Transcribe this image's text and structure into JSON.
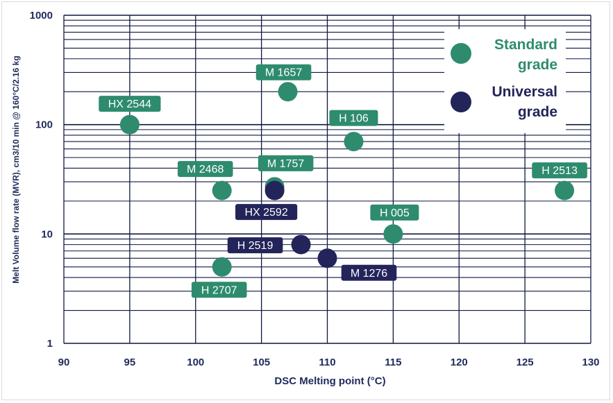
{
  "chart_data": {
    "type": "scatter",
    "xlabel": "DSC Melting point (°C)",
    "ylabel": "Melt Volume flow rate  (MVR), cm3/10 min @ 160°C/2.16 kg",
    "xlim": [
      90,
      130
    ],
    "ylim": [
      1,
      1000
    ],
    "yscale": "log",
    "x_ticks": [
      "90",
      "95",
      "100",
      "105",
      "110",
      "115",
      "120",
      "125",
      "130"
    ],
    "y_ticks": [
      "1",
      "10",
      "100",
      "1000"
    ],
    "grid": true,
    "legend_position": "top-right",
    "series": [
      {
        "name": "Standard grade",
        "color": "#2e8b6e",
        "points": [
          {
            "label": "HX 2544",
            "x": 95,
            "y": 100
          },
          {
            "label": "M 1657",
            "x": 107,
            "y": 200
          },
          {
            "label": "H 106",
            "x": 112,
            "y": 70
          },
          {
            "label": "M 2468",
            "x": 102,
            "y": 25
          },
          {
            "label": "M 1757",
            "x": 106,
            "y": 27
          },
          {
            "label": "H 2513",
            "x": 128,
            "y": 25
          },
          {
            "label": "H 005",
            "x": 115,
            "y": 10
          },
          {
            "label": "H 2707",
            "x": 102,
            "y": 5
          }
        ]
      },
      {
        "name": "Universal grade",
        "color": "#23245a",
        "points": [
          {
            "label": "HX 2592",
            "x": 106,
            "y": 25
          },
          {
            "label": "H 2519",
            "x": 108,
            "y": 8
          },
          {
            "label": "M 1276",
            "x": 110,
            "y": 6
          }
        ]
      }
    ]
  },
  "legend": {
    "items": [
      {
        "line1": "Standard",
        "line2": "grade",
        "color": "#2e8b6e"
      },
      {
        "line1": "Universal",
        "line2": "grade",
        "color": "#23245a"
      }
    ]
  }
}
